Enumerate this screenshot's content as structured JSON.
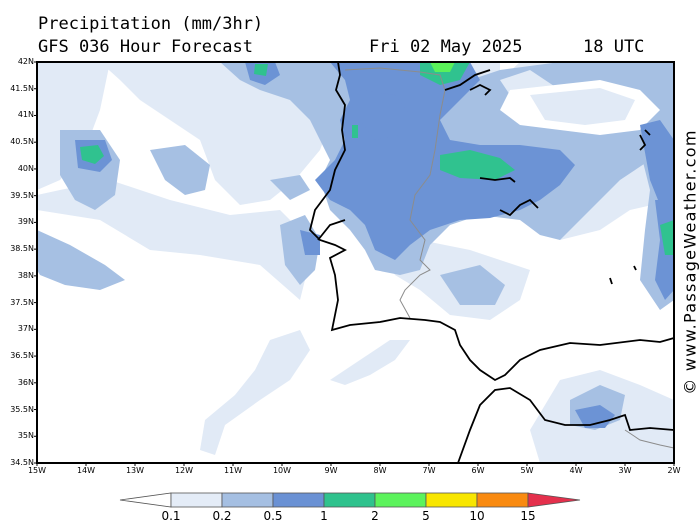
{
  "header": {
    "title": "Precipitation (mm/3hr)",
    "subtitle": "GFS 036 Hour Forecast",
    "date": "Fri 02 May 2025",
    "time": "18 UTC"
  },
  "watermark": "© www.PassageWeather.com",
  "map": {
    "lat_labels": [
      "42N",
      "41.5N",
      "41N",
      "40.5N",
      "40N",
      "39.5N",
      "39N",
      "38.5N",
      "38N",
      "37.5N",
      "37N",
      "36.5N",
      "36N",
      "35.5N",
      "35N",
      "34.5N"
    ],
    "lon_labels": [
      "15W",
      "14W",
      "13W",
      "12W",
      "11W",
      "10W",
      "9W",
      "8W",
      "7W",
      "6W",
      "5W",
      "4W",
      "3W",
      "2W"
    ]
  },
  "colorbar": {
    "labels": [
      "0.1",
      "0.2",
      "0.5",
      "1",
      "2",
      "5",
      "10",
      "15"
    ],
    "colors": [
      "#ffffff",
      "#e4ecf7",
      "#a5bfe2",
      "#6a91d4",
      "#2fc28d",
      "#5cf35c",
      "#f8e600",
      "#f98a10",
      "#e4304c"
    ]
  },
  "colors": {
    "level_0_1": "#e1eaf6",
    "level_0_2": "#a6c0e3",
    "level_0_5": "#6c93d5",
    "level_1": "#30c28f",
    "level_2": "#5af15a",
    "coast": "#000000",
    "border": "#8c8c8c"
  }
}
